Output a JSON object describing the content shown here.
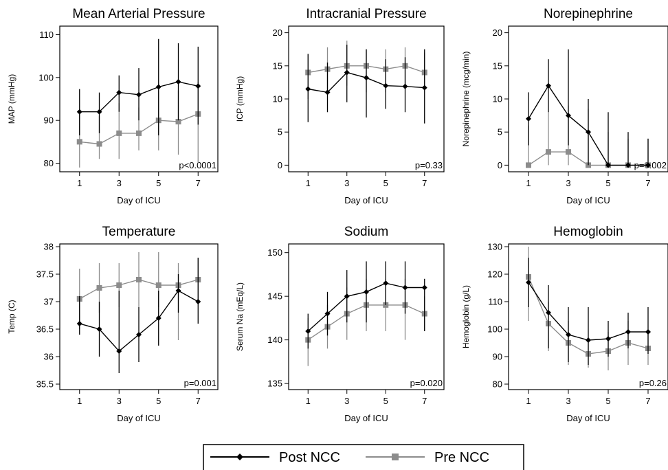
{
  "chart_data": [
    {
      "type": "line",
      "title": "Mean Arterial Pressure",
      "xlabel": "Day of ICU",
      "ylabel": "MAP (mmHg)",
      "xlim": [
        0,
        8
      ],
      "ylim": [
        78,
        112
      ],
      "yticks": [
        80,
        90,
        100,
        110
      ],
      "xticks": [
        1,
        3,
        5,
        7
      ],
      "annotation": "p<0.0001",
      "x": [
        1,
        2,
        3,
        4,
        5,
        6,
        7
      ],
      "series": [
        {
          "name": "Post NCC",
          "color": "#000000",
          "marker": "diamond",
          "values": [
            92,
            92,
            96.5,
            96,
            97.8,
            99,
            98
          ],
          "err_low": [
            86.5,
            87,
            92,
            90,
            86.5,
            90,
            89
          ],
          "err_high": [
            97.3,
            96.5,
            100.5,
            102.2,
            109,
            108,
            107.2
          ]
        },
        {
          "name": "Pre NCC",
          "color": "#8c8c8c",
          "marker": "square",
          "values": [
            85,
            84.5,
            87,
            87,
            90,
            89.7,
            91.5
          ],
          "err_low": [
            79,
            81,
            81,
            83,
            83,
            82,
            80
          ],
          "err_high": [
            92,
            91,
            94,
            93,
            97,
            97,
            99
          ]
        }
      ]
    },
    {
      "type": "line",
      "title": "Intracranial Pressure",
      "xlabel": "Day of ICU",
      "ylabel": "ICP (mmHg)",
      "xlim": [
        0,
        8
      ],
      "ylim": [
        -1,
        21
      ],
      "yticks": [
        0,
        5,
        10,
        15,
        20
      ],
      "xticks": [
        1,
        3,
        5,
        7
      ],
      "annotation": "p=0.33",
      "x": [
        1,
        2,
        3,
        4,
        5,
        6,
        7
      ],
      "series": [
        {
          "name": "Post NCC",
          "color": "#000000",
          "marker": "diamond",
          "values": [
            11.5,
            11,
            14,
            13.2,
            12,
            11.9,
            11.7
          ],
          "err_low": [
            6.5,
            8,
            9.5,
            7.2,
            8.5,
            8,
            6.3
          ],
          "err_high": [
            16.8,
            15.5,
            18.2,
            17.5,
            16,
            16.3,
            17.5
          ]
        },
        {
          "name": "Pre NCC",
          "color": "#8c8c8c",
          "marker": "square",
          "values": [
            14,
            14.5,
            15,
            15,
            14.5,
            15,
            14
          ],
          "err_low": [
            10,
            11,
            12,
            11,
            11,
            12,
            11.5
          ],
          "err_high": [
            16.8,
            17.8,
            18.8,
            17.5,
            17.5,
            17.8,
            17
          ]
        }
      ]
    },
    {
      "type": "line",
      "title": "Norepinephrine",
      "xlabel": "Day of ICU",
      "ylabel": "Norepinephrine (mcg/min)",
      "xlim": [
        0,
        8
      ],
      "ylim": [
        -1,
        21
      ],
      "yticks": [
        0,
        5,
        10,
        15,
        20
      ],
      "xticks": [
        1,
        3,
        5,
        7
      ],
      "annotation": "p=0.002",
      "x": [
        1,
        2,
        3,
        4,
        5,
        6,
        7
      ],
      "series": [
        {
          "name": "Post NCC",
          "color": "#000000",
          "marker": "diamond",
          "values": [
            7,
            12,
            7.5,
            5,
            0,
            0,
            0
          ],
          "err_low": [
            3,
            8,
            3,
            0,
            0,
            0,
            0
          ],
          "err_high": [
            11,
            16,
            17.5,
            10,
            8,
            5,
            4
          ]
        },
        {
          "name": "Pre NCC",
          "color": "#8c8c8c",
          "marker": "square",
          "values": [
            0,
            2,
            2,
            0,
            0,
            0,
            0
          ],
          "err_low": [
            0,
            0,
            0,
            0,
            0,
            0,
            0
          ],
          "err_high": [
            6,
            8,
            9,
            8.5,
            5,
            4,
            4
          ]
        }
      ]
    },
    {
      "type": "line",
      "title": "Temperature",
      "xlabel": "Day of ICU",
      "ylabel": "Temp (C)",
      "xlim": [
        0,
        8
      ],
      "ylim": [
        35.4,
        38.05
      ],
      "yticks": [
        35.5,
        36,
        36.5,
        37,
        37.5,
        38
      ],
      "xticks": [
        1,
        3,
        5,
        7
      ],
      "annotation": "p=0.001",
      "x": [
        1,
        2,
        3,
        4,
        5,
        6,
        7
      ],
      "series": [
        {
          "name": "Post NCC",
          "color": "#000000",
          "marker": "diamond",
          "values": [
            36.6,
            36.5,
            36.1,
            36.4,
            36.7,
            37.2,
            37
          ],
          "err_low": [
            36.4,
            36,
            35.7,
            35.9,
            36.2,
            36.8,
            36.6
          ],
          "err_high": [
            37.1,
            37,
            37.2,
            36.9,
            37.2,
            37.5,
            37.8
          ]
        },
        {
          "name": "Pre NCC",
          "color": "#8c8c8c",
          "marker": "square",
          "values": [
            37.05,
            37.25,
            37.3,
            37.4,
            37.3,
            37.3,
            37.4
          ],
          "err_low": [
            36.5,
            36.8,
            36.9,
            36.9,
            36.9,
            36.3,
            37
          ],
          "err_high": [
            37.6,
            37.7,
            37.7,
            37.9,
            37.9,
            37.7,
            37.8
          ]
        }
      ]
    },
    {
      "type": "line",
      "title": "Sodium",
      "xlabel": "Day of ICU",
      "ylabel": "Serum Na (mEq/L)",
      "xlim": [
        0,
        8
      ],
      "ylim": [
        134.3,
        151
      ],
      "yticks": [
        135,
        140,
        145,
        150
      ],
      "xticks": [
        1,
        3,
        5,
        7
      ],
      "annotation": "p=0.020",
      "x": [
        1,
        2,
        3,
        4,
        5,
        6,
        7
      ],
      "series": [
        {
          "name": "Post NCC",
          "color": "#000000",
          "marker": "diamond",
          "values": [
            141,
            143,
            145,
            145.5,
            146.5,
            146,
            146
          ],
          "err_low": [
            139,
            140.5,
            142,
            142,
            144,
            143,
            141
          ],
          "err_high": [
            143,
            145.5,
            148,
            149,
            149,
            149,
            147
          ]
        },
        {
          "name": "Pre NCC",
          "color": "#8c8c8c",
          "marker": "square",
          "values": [
            140,
            141.5,
            143,
            144,
            144,
            144,
            143
          ],
          "err_low": [
            137,
            139,
            140,
            141,
            141,
            140,
            141
          ],
          "err_high": [
            142.5,
            144,
            146,
            147,
            147,
            147,
            145
          ]
        }
      ]
    },
    {
      "type": "line",
      "title": "Hemoglobin",
      "xlabel": "Day of ICU",
      "ylabel": "Hemoglobin (g/L)",
      "xlim": [
        0,
        8
      ],
      "ylim": [
        78,
        131
      ],
      "yticks": [
        80,
        90,
        100,
        110,
        120,
        130
      ],
      "xticks": [
        1,
        3,
        5,
        7
      ],
      "annotation": "p=0.26",
      "x": [
        1,
        2,
        3,
        4,
        5,
        6,
        7
      ],
      "series": [
        {
          "name": "Post NCC",
          "color": "#000000",
          "marker": "diamond",
          "values": [
            117,
            106,
            98,
            96,
            96.5,
            99,
            99
          ],
          "err_low": [
            108,
            93,
            88,
            87,
            90,
            93,
            91
          ],
          "err_high": [
            126,
            116,
            108,
            108,
            103,
            106,
            108
          ]
        },
        {
          "name": "Pre NCC",
          "color": "#8c8c8c",
          "marker": "square",
          "values": [
            119,
            102,
            95,
            91,
            92,
            95,
            93
          ],
          "err_low": [
            103,
            92,
            87,
            86,
            85,
            87,
            87
          ],
          "err_high": [
            130,
            110,
            103,
            97,
            99,
            103,
            99
          ]
        }
      ]
    }
  ],
  "legend": {
    "items": [
      {
        "label": "Post NCC",
        "color": "#000000",
        "marker": "diamond"
      },
      {
        "label": "Pre NCC",
        "color": "#8c8c8c",
        "marker": "square"
      }
    ]
  }
}
